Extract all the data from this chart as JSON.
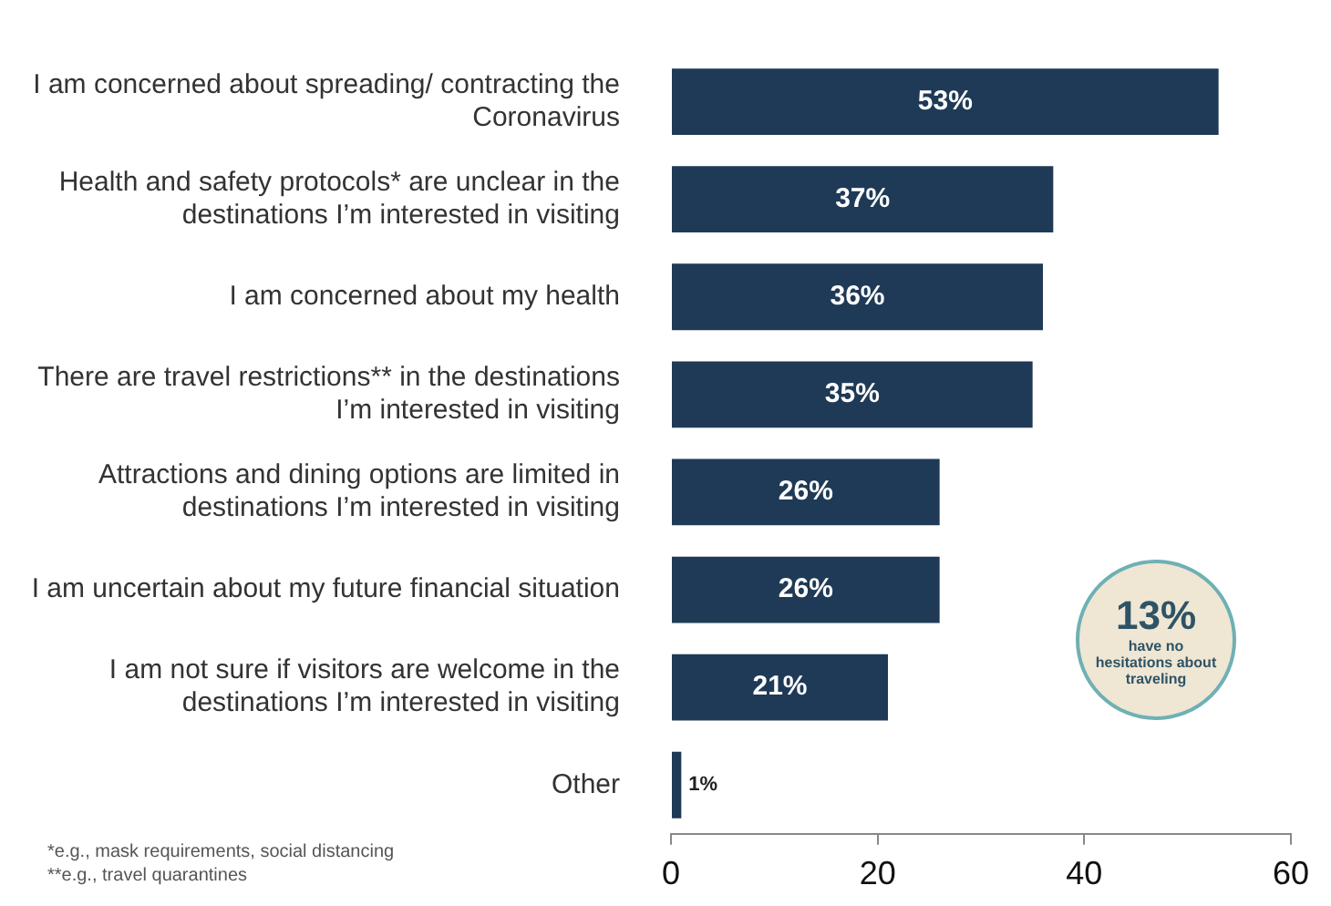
{
  "chart_data": {
    "type": "bar",
    "orientation": "horizontal",
    "categories": [
      "I am concerned about spreading/ contracting the Coronavirus",
      "Health and safety protocols* are unclear in the destinations I’m interested in visiting",
      "I am concerned about my health",
      "There are travel restrictions** in the destinations I’m interested in visiting",
      "Attractions and dining options are limited in destinations I’m interested in visiting",
      "I am uncertain about my future financial situation",
      "I am not sure if visitors are welcome in the destinations I’m interested in visiting",
      "Other"
    ],
    "values": [
      53,
      37,
      36,
      35,
      26,
      26,
      21,
      1
    ],
    "value_labels": [
      "53%",
      "37%",
      "36%",
      "35%",
      "26%",
      "26%",
      "21%",
      "1%"
    ],
    "color": "#1f3a56",
    "xlim": [
      0,
      60
    ],
    "xticks": [
      0,
      20,
      40,
      60
    ],
    "grid": false,
    "legend": false,
    "annotations": [
      "13%",
      "have no hesitations about traveling",
      "*e.g., mask requirements, social distancing",
      "**e.g., travel quarantines"
    ]
  }
}
